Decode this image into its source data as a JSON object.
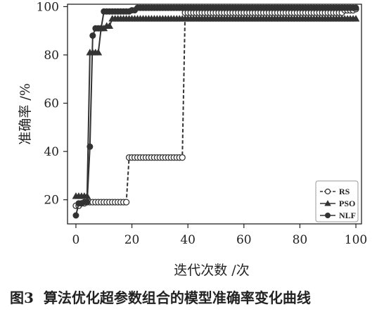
{
  "chart_data": {
    "type": "line",
    "title": "",
    "xlabel": "迭代次数 /次",
    "ylabel": "准确率 /%",
    "xlim": [
      -3,
      102
    ],
    "ylim": [
      10,
      101
    ],
    "xticks": [
      0,
      20,
      40,
      60,
      80,
      100
    ],
    "yticks": [
      20,
      40,
      60,
      80,
      100
    ],
    "legend_position": "bottom-right",
    "grid": false,
    "series": [
      {
        "name": "RS",
        "marker": "open-circle",
        "linestyle": "dashed",
        "color": "#333333",
        "x": [
          0,
          1,
          2,
          3,
          4,
          5,
          6,
          7,
          8,
          9,
          10,
          11,
          12,
          13,
          14,
          15,
          16,
          17,
          18,
          19,
          20,
          21,
          22,
          23,
          24,
          25,
          26,
          27,
          28,
          29,
          30,
          31,
          32,
          33,
          34,
          35,
          36,
          37,
          38,
          39,
          40,
          41,
          42,
          43,
          44,
          45,
          46,
          47,
          48,
          49,
          50,
          51,
          52,
          53,
          54,
          55,
          56,
          57,
          58,
          59,
          60,
          61,
          62,
          63,
          64,
          65,
          66,
          67,
          68,
          69,
          70,
          71,
          72,
          73,
          74,
          75,
          76,
          77,
          78,
          79,
          80,
          81,
          82,
          83,
          84,
          85,
          86,
          87,
          88,
          89,
          90,
          91,
          92,
          93,
          94,
          95,
          96,
          97,
          98,
          99,
          100
        ],
        "y": [
          17.5,
          17.5,
          18.5,
          18.5,
          19,
          19,
          19,
          19,
          19,
          19,
          19,
          19,
          19,
          19,
          19,
          19,
          19,
          19,
          19,
          37.5,
          37.5,
          37.5,
          37.5,
          37.5,
          37.5,
          37.5,
          37.5,
          37.5,
          37.5,
          37.5,
          37.5,
          37.5,
          37.5,
          37.5,
          37.5,
          37.5,
          37.5,
          37.5,
          37.5,
          97.5,
          97.5,
          97.5,
          97.5,
          97.5,
          97.5,
          97.5,
          97.5,
          97.5,
          97.5,
          97.5,
          97.5,
          97.5,
          97.5,
          97.5,
          97.5,
          97.5,
          97.5,
          97.5,
          97.5,
          97.5,
          97.5,
          97.5,
          97.5,
          97.5,
          97.5,
          97.5,
          97.5,
          97.5,
          97.5,
          97.5,
          97.5,
          97.5,
          97.5,
          97.5,
          97.5,
          97.5,
          97.5,
          97.5,
          97.5,
          97.5,
          97.5,
          97.5,
          97.5,
          97.5,
          97.5,
          97.5,
          97.5,
          97.5,
          97.5,
          97.5,
          97.5,
          97.5,
          97.5,
          97.5,
          97.5,
          97.5,
          98.5,
          98.5,
          98.5,
          98.5,
          99
        ]
      },
      {
        "name": "PSO",
        "marker": "triangle",
        "linestyle": "solid",
        "color": "#333333",
        "x": [
          0,
          1,
          2,
          3,
          4,
          5,
          6,
          7,
          8,
          9,
          10,
          11,
          12,
          13,
          14,
          15,
          16,
          17,
          18,
          19,
          20,
          21,
          22,
          23,
          24,
          25,
          26,
          27,
          28,
          29,
          30,
          31,
          32,
          33,
          34,
          35,
          36,
          37,
          38,
          39,
          40,
          41,
          42,
          43,
          44,
          45,
          46,
          47,
          48,
          49,
          50,
          51,
          52,
          53,
          54,
          55,
          56,
          57,
          58,
          59,
          60,
          61,
          62,
          63,
          64,
          65,
          66,
          67,
          68,
          69,
          70,
          71,
          72,
          73,
          74,
          75,
          76,
          77,
          78,
          79,
          80,
          81,
          82,
          83,
          84,
          85,
          86,
          87,
          88,
          89,
          90,
          91,
          92,
          93,
          94,
          95,
          96,
          97,
          98,
          99,
          100
        ],
        "y": [
          21.5,
          21.5,
          21.5,
          21.5,
          21.5,
          81,
          81,
          81,
          81,
          91,
          91,
          92,
          92,
          95,
          95,
          95,
          95,
          95,
          95,
          95,
          95,
          95,
          95,
          95,
          95,
          95,
          95,
          95,
          95,
          95,
          95,
          95,
          95,
          95,
          95,
          95,
          95,
          95,
          95,
          95,
          95,
          95,
          95,
          95,
          95,
          95,
          95,
          95,
          95,
          95,
          95,
          95,
          95,
          95,
          95,
          95,
          95,
          95,
          95,
          95,
          95,
          95,
          95,
          95,
          95,
          95,
          95,
          95,
          95,
          95,
          95,
          95,
          95,
          95,
          95,
          95,
          95,
          95,
          95,
          95,
          95,
          95,
          95,
          95,
          95,
          95,
          95,
          95,
          95,
          95,
          95,
          95,
          95,
          95,
          95,
          95,
          95,
          95,
          95,
          95,
          95
        ]
      },
      {
        "name": "NLF",
        "marker": "filled-circle",
        "linestyle": "solid",
        "color": "#333333",
        "x": [
          0,
          1,
          2,
          3,
          4,
          5,
          6,
          7,
          8,
          9,
          10,
          11,
          12,
          13,
          14,
          15,
          16,
          17,
          18,
          19,
          20,
          21,
          22,
          23,
          24,
          25,
          26,
          27,
          28,
          29,
          30,
          31,
          32,
          33,
          34,
          35,
          36,
          37,
          38,
          39,
          40,
          41,
          42,
          43,
          44,
          45,
          46,
          47,
          48,
          49,
          50,
          51,
          52,
          53,
          54,
          55,
          56,
          57,
          58,
          59,
          60,
          61,
          62,
          63,
          64,
          65,
          66,
          67,
          68,
          69,
          70,
          71,
          72,
          73,
          74,
          75,
          76,
          77,
          78,
          79,
          80,
          81,
          82,
          83,
          84,
          85,
          86,
          87,
          88,
          89,
          90,
          91,
          92,
          93,
          94,
          95,
          96,
          97,
          98,
          99,
          100
        ],
        "y": [
          13.5,
          18.5,
          18.5,
          19,
          19,
          42,
          88,
          91,
          91,
          91,
          98,
          98,
          98,
          98,
          98,
          98,
          98,
          98,
          98,
          98,
          98.5,
          98.5,
          99.5,
          99.5,
          99.5,
          99.5,
          99.5,
          99.5,
          99.5,
          99.5,
          99.5,
          99.5,
          99.5,
          99.5,
          99.5,
          99.5,
          99.5,
          99.5,
          99.5,
          99.5,
          99.5,
          99.5,
          99.5,
          99.5,
          99.5,
          99.5,
          99.5,
          99.5,
          99.5,
          99.5,
          99.5,
          99.5,
          99.5,
          99.5,
          99.5,
          99.5,
          99.5,
          99.5,
          99.5,
          99.5,
          99.5,
          99.5,
          99.5,
          99.5,
          99.5,
          99.5,
          99.5,
          99.5,
          99.5,
          99.5,
          99.5,
          99.5,
          99.5,
          99.5,
          99.5,
          99.5,
          99.5,
          99.5,
          99.5,
          99.5,
          99.5,
          99.5,
          99.5,
          99.5,
          99.5,
          99.5,
          99.5,
          99.5,
          99.5,
          99.5,
          99.5,
          99.5,
          99.5,
          99.5,
          99.5,
          99.5,
          99.5,
          99.5,
          99.5,
          99.5,
          99.5
        ]
      }
    ]
  },
  "caption": {
    "label": "图3",
    "text": "算法优化超参数组合的模型准确率变化曲线"
  }
}
